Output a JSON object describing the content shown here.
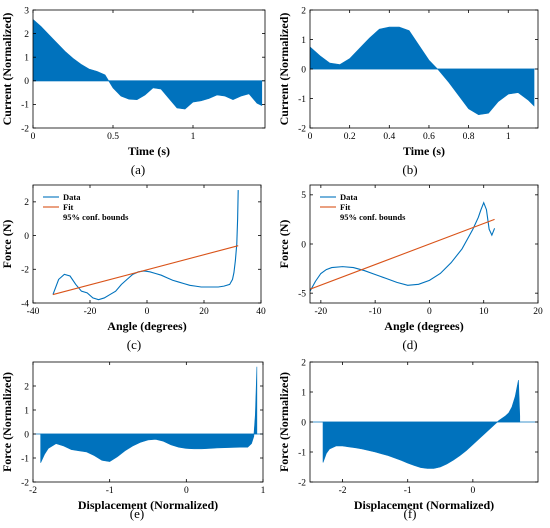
{
  "colors": {
    "data": "#0072BD",
    "fit": "#D95319",
    "axis": "#000000"
  },
  "chart_data": [
    {
      "id": "a",
      "type": "area",
      "caption": "(a)",
      "xlabel": "Time (s)",
      "ylabel": "Current (Normalized)",
      "xlim": [
        0,
        1.45
      ],
      "ylim": [
        -2,
        3
      ],
      "xticks": [
        0,
        0.5,
        1
      ],
      "yticks": [
        -2,
        -1,
        0,
        1,
        2,
        3
      ],
      "x": [
        0,
        0.05,
        0.1,
        0.15,
        0.2,
        0.25,
        0.3,
        0.35,
        0.4,
        0.45,
        0.5,
        0.55,
        0.6,
        0.65,
        0.7,
        0.75,
        0.8,
        0.85,
        0.9,
        0.95,
        1.0,
        1.05,
        1.1,
        1.15,
        1.2,
        1.25,
        1.3,
        1.35,
        1.4,
        1.43
      ],
      "y": [
        2.6,
        2.3,
        1.95,
        1.6,
        1.25,
        0.95,
        0.7,
        0.5,
        0.4,
        0.25,
        -0.3,
        -0.65,
        -0.78,
        -0.8,
        -0.6,
        -0.3,
        -0.35,
        -0.75,
        -1.15,
        -1.2,
        -0.9,
        -0.85,
        -0.75,
        -0.6,
        -0.65,
        -0.8,
        -0.65,
        -0.55,
        -0.95,
        -1.05
      ]
    },
    {
      "id": "b",
      "type": "area",
      "caption": "(b)",
      "xlabel": "Time (s)",
      "ylabel": "Current (Normalized)",
      "xlim": [
        0,
        1.15
      ],
      "ylim": [
        -2,
        2
      ],
      "xticks": [
        0,
        0.2,
        0.4,
        0.6,
        0.8,
        1
      ],
      "yticks": [
        -2,
        -1,
        0,
        1,
        2
      ],
      "x": [
        0,
        0.05,
        0.1,
        0.15,
        0.2,
        0.25,
        0.3,
        0.35,
        0.4,
        0.45,
        0.5,
        0.55,
        0.6,
        0.65,
        0.7,
        0.75,
        0.8,
        0.85,
        0.9,
        0.95,
        1.0,
        1.05,
        1.1,
        1.13
      ],
      "y": [
        0.75,
        0.45,
        0.2,
        0.15,
        0.35,
        0.7,
        1.05,
        1.35,
        1.42,
        1.42,
        1.3,
        0.8,
        0.3,
        -0.05,
        -0.45,
        -0.9,
        -1.35,
        -1.55,
        -1.5,
        -1.1,
        -0.85,
        -0.8,
        -1.05,
        -1.25
      ]
    },
    {
      "id": "c",
      "type": "line",
      "caption": "(c)",
      "xlabel": "Angle (degrees)",
      "ylabel": "Force (N)",
      "xlim": [
        -40,
        40
      ],
      "ylim": [
        -4,
        3
      ],
      "xticks": [
        -40,
        -20,
        0,
        20,
        40
      ],
      "yticks": [
        -4,
        -2,
        0,
        2
      ],
      "legend": [
        "Data",
        "Fit",
        "95% conf. bounds"
      ],
      "legend_position": "top-left",
      "series": [
        {
          "name": "Data",
          "x": [
            -33,
            -31,
            -29,
            -27,
            -25,
            -23,
            -21,
            -19,
            -17,
            -15,
            -13,
            -11,
            -9,
            -7,
            -5,
            -3,
            -1,
            1,
            3,
            5,
            7,
            9,
            11,
            13,
            15,
            17,
            19,
            21,
            23,
            25,
            27,
            29,
            30,
            30.5,
            31,
            31.5,
            31.8,
            32
          ],
          "y": [
            -3.5,
            -2.6,
            -2.3,
            -2.4,
            -2.9,
            -3.3,
            -3.4,
            -3.7,
            -3.8,
            -3.7,
            -3.5,
            -3.3,
            -2.9,
            -2.6,
            -2.3,
            -2.15,
            -2.1,
            -2.15,
            -2.25,
            -2.35,
            -2.5,
            -2.65,
            -2.75,
            -2.85,
            -2.95,
            -3.0,
            -3.05,
            -3.05,
            -3.05,
            -3.05,
            -3.0,
            -2.9,
            -2.6,
            -2.2,
            -1.5,
            -0.5,
            1.0,
            2.7
          ]
        },
        {
          "name": "Fit",
          "x": [
            -33,
            32
          ],
          "y": [
            -3.5,
            -0.6
          ]
        }
      ]
    },
    {
      "id": "d",
      "type": "line",
      "caption": "(d)",
      "xlabel": "Angle (degrees)",
      "ylabel": "Force (N)",
      "xlim": [
        -22,
        20
      ],
      "ylim": [
        -6,
        6
      ],
      "xticks": [
        -20,
        -10,
        0,
        10,
        20
      ],
      "yticks": [
        -5,
        0,
        5
      ],
      "legend": [
        "Data",
        "Fit",
        "95% conf. bounds"
      ],
      "legend_position": "top-left",
      "series": [
        {
          "name": "Data",
          "x": [
            -22,
            -21,
            -20,
            -19,
            -18,
            -16,
            -14,
            -12,
            -10,
            -8,
            -6,
            -4,
            -2,
            0,
            2,
            4,
            6,
            7,
            8,
            9,
            9.5,
            10,
            10.5,
            11,
            11.5,
            12
          ],
          "y": [
            -4.8,
            -3.8,
            -3.0,
            -2.6,
            -2.4,
            -2.3,
            -2.4,
            -2.7,
            -3.1,
            -3.5,
            -3.9,
            -4.2,
            -4.1,
            -3.7,
            -3.0,
            -1.9,
            -0.5,
            0.5,
            1.5,
            2.7,
            3.5,
            4.2,
            3.5,
            1.5,
            0.9,
            1.6
          ]
        },
        {
          "name": "Fit",
          "x": [
            -22,
            12
          ],
          "y": [
            -4.6,
            2.5
          ]
        }
      ]
    },
    {
      "id": "e",
      "type": "area",
      "caption": "(e)",
      "xlabel": "Displacement (Normalized)",
      "ylabel": "Force (Normalized)",
      "xlim": [
        -2,
        1
      ],
      "ylim": [
        -2,
        3
      ],
      "xticks": [
        -2,
        -1,
        0,
        1
      ],
      "yticks": [
        -2,
        -1,
        0,
        1,
        2
      ],
      "x": [
        -1.9,
        -1.85,
        -1.8,
        -1.7,
        -1.6,
        -1.5,
        -1.4,
        -1.3,
        -1.2,
        -1.1,
        -1.0,
        -0.9,
        -0.8,
        -0.7,
        -0.6,
        -0.5,
        -0.4,
        -0.3,
        -0.2,
        -0.1,
        0.0,
        0.1,
        0.2,
        0.3,
        0.4,
        0.5,
        0.6,
        0.7,
        0.8,
        0.85,
        0.88,
        0.9,
        0.92
      ],
      "y": [
        -1.2,
        -0.85,
        -0.6,
        -0.4,
        -0.5,
        -0.65,
        -0.7,
        -0.75,
        -0.9,
        -1.1,
        -1.15,
        -0.95,
        -0.7,
        -0.5,
        -0.35,
        -0.25,
        -0.22,
        -0.3,
        -0.45,
        -0.55,
        -0.6,
        -0.62,
        -0.62,
        -0.6,
        -0.58,
        -0.57,
        -0.56,
        -0.55,
        -0.55,
        -0.4,
        -0.1,
        0.8,
        2.8
      ]
    },
    {
      "id": "f",
      "type": "area",
      "caption": "(f)",
      "xlabel": "Displacement (Normalized)",
      "ylabel": "Force (Normalized)",
      "xlim": [
        -2.5,
        1
      ],
      "ylim": [
        -2,
        2
      ],
      "xticks": [
        -2,
        -1,
        0
      ],
      "yticks": [
        -2,
        -1,
        0,
        1,
        2
      ],
      "x": [
        -2.3,
        -2.25,
        -2.2,
        -2.1,
        -2.0,
        -1.9,
        -1.8,
        -1.7,
        -1.6,
        -1.5,
        -1.4,
        -1.3,
        -1.2,
        -1.1,
        -1.0,
        -0.9,
        -0.8,
        -0.7,
        -0.6,
        -0.5,
        -0.4,
        -0.3,
        -0.2,
        -0.1,
        0.0,
        0.1,
        0.2,
        0.3,
        0.4,
        0.5,
        0.55,
        0.6,
        0.65,
        0.7,
        0.72
      ],
      "y": [
        -1.35,
        -1.05,
        -0.9,
        -0.8,
        -0.8,
        -0.83,
        -0.86,
        -0.9,
        -0.95,
        -1.0,
        -1.06,
        -1.12,
        -1.2,
        -1.28,
        -1.37,
        -1.45,
        -1.52,
        -1.55,
        -1.55,
        -1.5,
        -1.4,
        -1.27,
        -1.12,
        -0.95,
        -0.75,
        -0.55,
        -0.35,
        -0.15,
        0.05,
        0.2,
        0.3,
        0.5,
        0.85,
        1.4,
        0.2
      ]
    }
  ]
}
